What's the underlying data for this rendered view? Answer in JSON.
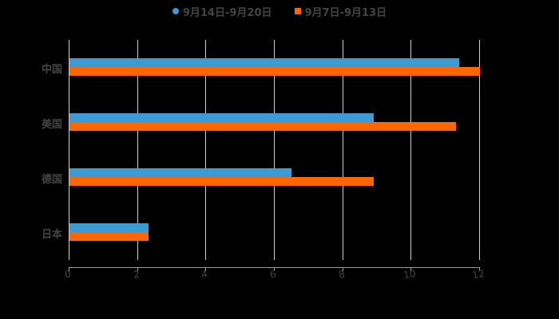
{
  "chart_data": {
    "type": "bar",
    "orientation": "horizontal",
    "title": "",
    "xlabel": "",
    "ylabel": "",
    "categories": [
      "中国",
      "美国",
      "德国",
      "日本"
    ],
    "series": [
      {
        "name": "9月14日-9月20日",
        "color": "#3a9bd5",
        "values": [
          11.4,
          8.9,
          6.5,
          2.3
        ]
      },
      {
        "name": "9月7日-9月13日",
        "color": "#ff6600",
        "values": [
          12.0,
          11.3,
          8.9,
          2.3
        ]
      }
    ],
    "xlim": [
      0,
      12
    ],
    "xticks": [
      "0",
      "2",
      "4",
      "6",
      "8",
      "10",
      "12"
    ],
    "grid": "vertical",
    "legend_position": "top",
    "background": "#000000"
  },
  "legend": {
    "items": [
      {
        "label": "9月14日-9月20日",
        "color": "#3a9bd5",
        "marker": "circle"
      },
      {
        "label": "9月7日-9月13日",
        "color": "#ff6600",
        "marker": "square"
      }
    ]
  }
}
